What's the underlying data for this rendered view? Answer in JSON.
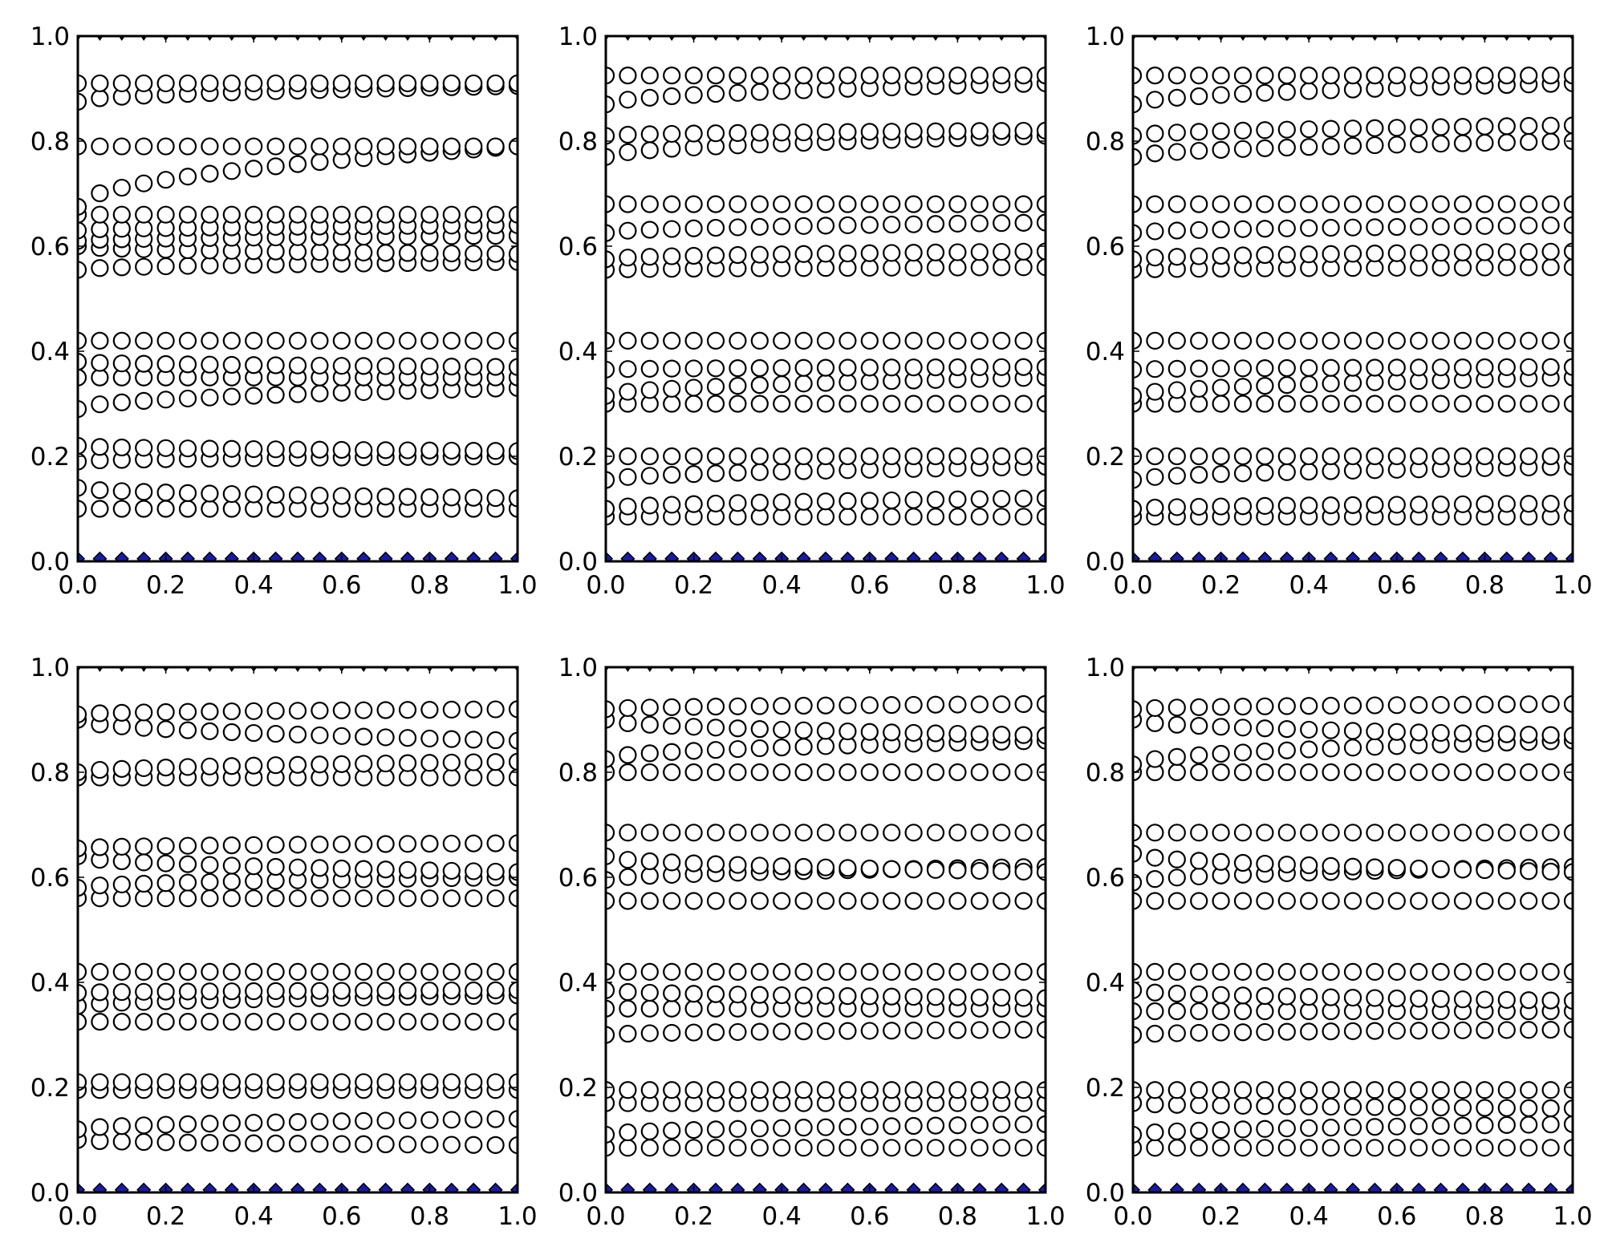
{
  "chart_data": [
    {
      "type": "scatter",
      "panel": "top-left",
      "xlim": [
        0,
        1
      ],
      "ylim": [
        0,
        1
      ],
      "xticks": [
        "0.0",
        "0.2",
        "0.4",
        "0.6",
        "0.8",
        "1.0"
      ],
      "yticks": [
        "0.0",
        "0.2",
        "0.4",
        "0.6",
        "0.8",
        "1.0"
      ],
      "grid": false,
      "x": [
        0.0,
        0.05,
        0.1,
        0.15,
        0.2,
        0.25,
        0.3,
        0.35,
        0.4,
        0.45,
        0.5,
        0.55,
        0.6,
        0.65,
        0.7,
        0.75,
        0.8,
        0.85,
        0.9,
        0.95,
        1.0
      ],
      "circle_rows": [
        [
          0.1,
          0.1
        ],
        [
          0.14,
          0.12
        ],
        [
          0.19,
          0.2
        ],
        [
          0.22,
          0.21
        ],
        [
          0.29,
          0.33
        ],
        [
          0.35,
          0.35
        ],
        [
          0.38,
          0.37
        ],
        [
          0.42,
          0.42
        ],
        [
          0.555,
          0.57
        ],
        [
          0.6,
          0.585
        ],
        [
          0.61,
          0.62
        ],
        [
          0.63,
          0.64
        ],
        [
          0.66,
          0.66
        ],
        [
          0.675,
          0.79
        ],
        [
          0.79,
          0.79
        ],
        [
          0.875,
          0.905
        ],
        [
          0.91,
          0.91
        ]
      ],
      "diamond_y": 0.005,
      "triangle_y": 1.0
    },
    {
      "type": "scatter",
      "panel": "top-middle",
      "xlim": [
        0,
        1
      ],
      "ylim": [
        0,
        1
      ],
      "xticks": [
        "0.0",
        "0.2",
        "0.4",
        "0.6",
        "0.8",
        "1.0"
      ],
      "yticks": [
        "0.0",
        "0.2",
        "0.4",
        "0.6",
        "0.8",
        "1.0"
      ],
      "grid": false,
      "x": [
        0.0,
        0.05,
        0.1,
        0.15,
        0.2,
        0.25,
        0.3,
        0.35,
        0.4,
        0.45,
        0.5,
        0.55,
        0.6,
        0.65,
        0.7,
        0.75,
        0.8,
        0.85,
        0.9,
        0.95,
        1.0
      ],
      "circle_rows": [
        [
          0.085,
          0.085
        ],
        [
          0.1,
          0.12
        ],
        [
          0.155,
          0.18
        ],
        [
          0.2,
          0.2
        ],
        [
          0.3,
          0.3
        ],
        [
          0.315,
          0.35
        ],
        [
          0.365,
          0.37
        ],
        [
          0.42,
          0.42
        ],
        [
          0.555,
          0.56
        ],
        [
          0.575,
          0.59
        ],
        [
          0.625,
          0.645
        ],
        [
          0.68,
          0.68
        ],
        [
          0.77,
          0.81
        ],
        [
          0.81,
          0.82
        ],
        [
          0.87,
          0.91
        ],
        [
          0.925,
          0.925
        ]
      ],
      "diamond_y": 0.005,
      "triangle_y": 1.0
    },
    {
      "type": "scatter",
      "panel": "top-right",
      "xlim": [
        0,
        1
      ],
      "ylim": [
        0,
        1
      ],
      "xticks": [
        "0.0",
        "0.2",
        "0.4",
        "0.6",
        "0.8",
        "1.0"
      ],
      "yticks": [
        "0.0",
        "0.2",
        "0.4",
        "0.6",
        "0.8",
        "1.0"
      ],
      "grid": false,
      "x": [
        0.0,
        0.05,
        0.1,
        0.15,
        0.2,
        0.25,
        0.3,
        0.35,
        0.4,
        0.45,
        0.5,
        0.55,
        0.6,
        0.65,
        0.7,
        0.75,
        0.8,
        0.85,
        0.9,
        0.95,
        1.0
      ],
      "circle_rows": [
        [
          0.085,
          0.085
        ],
        [
          0.1,
          0.11
        ],
        [
          0.155,
          0.18
        ],
        [
          0.2,
          0.2
        ],
        [
          0.3,
          0.3
        ],
        [
          0.315,
          0.35
        ],
        [
          0.365,
          0.37
        ],
        [
          0.42,
          0.42
        ],
        [
          0.555,
          0.56
        ],
        [
          0.575,
          0.59
        ],
        [
          0.625,
          0.64
        ],
        [
          0.68,
          0.68
        ],
        [
          0.77,
          0.8
        ],
        [
          0.81,
          0.83
        ],
        [
          0.87,
          0.91
        ],
        [
          0.925,
          0.925
        ]
      ],
      "diamond_y": 0.005,
      "triangle_y": 1.0
    },
    {
      "type": "scatter",
      "panel": "bottom-left",
      "xlim": [
        0,
        1
      ],
      "ylim": [
        0,
        1
      ],
      "xticks": [
        "0.0",
        "0.2",
        "0.4",
        "0.6",
        "0.8",
        "1.0"
      ],
      "yticks": [
        "0.0",
        "0.2",
        "0.4",
        "0.6",
        "0.8",
        "1.0"
      ],
      "grid": false,
      "x": [
        0.0,
        0.05,
        0.1,
        0.15,
        0.2,
        0.25,
        0.3,
        0.35,
        0.4,
        0.45,
        0.5,
        0.55,
        0.6,
        0.65,
        0.7,
        0.75,
        0.8,
        0.85,
        0.9,
        0.95,
        1.0
      ],
      "circle_rows": [
        [
          0.1,
          0.09
        ],
        [
          0.12,
          0.14
        ],
        [
          0.195,
          0.195
        ],
        [
          0.21,
          0.21
        ],
        [
          0.325,
          0.325
        ],
        [
          0.355,
          0.375
        ],
        [
          0.38,
          0.385
        ],
        [
          0.42,
          0.42
        ],
        [
          0.56,
          0.56
        ],
        [
          0.58,
          0.6
        ],
        [
          0.64,
          0.61
        ],
        [
          0.655,
          0.665
        ],
        [
          0.79,
          0.79
        ],
        [
          0.8,
          0.82
        ],
        [
          0.9,
          0.86
        ],
        [
          0.91,
          0.92
        ]
      ],
      "diamond_y": 0.005,
      "triangle_y": 1.0
    },
    {
      "type": "scatter",
      "panel": "bottom-middle",
      "xlim": [
        0,
        1
      ],
      "ylim": [
        0,
        1
      ],
      "xticks": [
        "0.0",
        "0.2",
        "0.4",
        "0.6",
        "0.8",
        "1.0"
      ],
      "yticks": [
        "0.0",
        "0.2",
        "0.4",
        "0.6",
        "0.8",
        "1.0"
      ],
      "grid": false,
      "x": [
        0.0,
        0.05,
        0.1,
        0.15,
        0.2,
        0.25,
        0.3,
        0.35,
        0.4,
        0.45,
        0.5,
        0.55,
        0.6,
        0.65,
        0.7,
        0.75,
        0.8,
        0.85,
        0.9,
        0.95,
        1.0
      ],
      "circle_rows": [
        [
          0.085,
          0.085
        ],
        [
          0.11,
          0.13
        ],
        [
          0.17,
          0.17
        ],
        [
          0.195,
          0.195
        ],
        [
          0.3,
          0.31
        ],
        [
          0.35,
          0.35
        ],
        [
          0.385,
          0.37
        ],
        [
          0.42,
          0.42
        ],
        [
          0.555,
          0.555
        ],
        [
          0.595,
          0.62
        ],
        [
          0.64,
          0.61
        ],
        [
          0.685,
          0.685
        ],
        [
          0.8,
          0.8
        ],
        [
          0.825,
          0.86
        ],
        [
          0.9,
          0.87
        ],
        [
          0.92,
          0.93
        ]
      ],
      "diamond_y": 0.005,
      "triangle_y": 1.0
    },
    {
      "type": "scatter",
      "panel": "bottom-right",
      "xlim": [
        0,
        1
      ],
      "ylim": [
        0,
        1
      ],
      "xticks": [
        "0.0",
        "0.2",
        "0.4",
        "0.6",
        "0.8",
        "1.0"
      ],
      "yticks": [
        "0.0",
        "0.2",
        "0.4",
        "0.6",
        "0.8",
        "1.0"
      ],
      "grid": false,
      "x": [
        0.0,
        0.05,
        0.1,
        0.15,
        0.2,
        0.25,
        0.3,
        0.35,
        0.4,
        0.45,
        0.5,
        0.55,
        0.6,
        0.65,
        0.7,
        0.75,
        0.8,
        0.85,
        0.9,
        0.95,
        1.0
      ],
      "circle_rows": [
        [
          0.085,
          0.085
        ],
        [
          0.11,
          0.13
        ],
        [
          0.17,
          0.16
        ],
        [
          0.195,
          0.195
        ],
        [
          0.3,
          0.31
        ],
        [
          0.345,
          0.345
        ],
        [
          0.385,
          0.365
        ],
        [
          0.42,
          0.42
        ],
        [
          0.555,
          0.555
        ],
        [
          0.59,
          0.62
        ],
        [
          0.645,
          0.61
        ],
        [
          0.685,
          0.685
        ],
        [
          0.8,
          0.8
        ],
        [
          0.815,
          0.86
        ],
        [
          0.9,
          0.87
        ],
        [
          0.92,
          0.93
        ]
      ],
      "diamond_y": 0.005,
      "triangle_y": 1.0
    }
  ],
  "colors": {
    "circle_edge": "#000000",
    "circle_face": "#ffffff",
    "diamond_fill": "#1a1aaa",
    "axes": "#000000"
  }
}
